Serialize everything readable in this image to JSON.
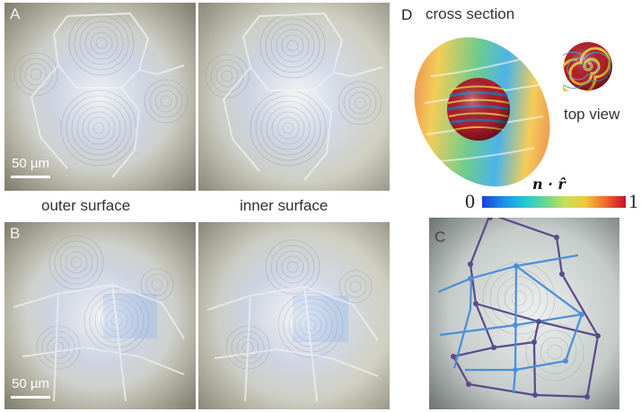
{
  "panels": {
    "a": {
      "letter": "A",
      "scalebar": "50 µm"
    },
    "b": {
      "letter": "B",
      "scalebar": "50 µm"
    },
    "c": {
      "letter": "C"
    },
    "d": {
      "letter": "D",
      "title": "cross section",
      "side_label": "top view"
    }
  },
  "captions": {
    "outer": "outer surface",
    "inner": "inner surface"
  },
  "colorbar": {
    "title": "n · r̂",
    "min": "0",
    "max": "1"
  },
  "colors": {
    "network_blue": "#4a8fd8",
    "network_purple": "#5a4a8a",
    "background": "#ffffff"
  }
}
